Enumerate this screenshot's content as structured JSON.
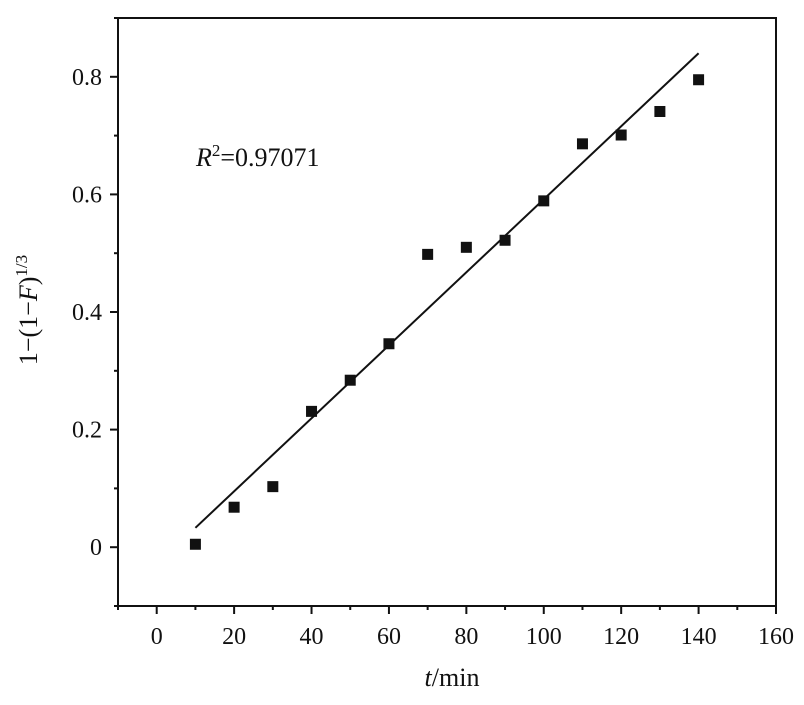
{
  "chart_data": {
    "type": "scatter",
    "xlabel": {
      "var": "t",
      "rest": "/min"
    },
    "ylabel": {
      "text": "1−(1−",
      "var": "F",
      "close": ")",
      "sup": "1/3"
    },
    "annotation": {
      "var": "R",
      "sup": "2",
      "rest": "=0.97071"
    },
    "xlim": [
      -10,
      160
    ],
    "ylim": [
      -0.1,
      0.9
    ],
    "x_ticks": [
      0,
      20,
      40,
      60,
      80,
      100,
      120,
      140,
      160
    ],
    "x_tick_labels": [
      "0",
      "20",
      "40",
      "60",
      "80",
      "100",
      "120",
      "140",
      "160"
    ],
    "y_ticks": [
      0,
      0.2,
      0.4,
      0.6,
      0.8
    ],
    "y_tick_labels": [
      "0",
      "0.2",
      "0.4",
      "0.6",
      "0.8"
    ],
    "grid": false,
    "series": [
      {
        "marker": "square",
        "color": "#111111",
        "x": [
          10,
          20,
          30,
          40,
          50,
          60,
          70,
          80,
          90,
          100,
          110,
          120,
          130,
          140
        ],
        "y": [
          0.005,
          0.068,
          0.103,
          0.231,
          0.284,
          0.346,
          0.498,
          0.51,
          0.522,
          0.589,
          0.686,
          0.701,
          0.741,
          0.795
        ]
      }
    ],
    "fit_line": {
      "x": [
        10,
        140
      ],
      "y": [
        0.033,
        0.84
      ],
      "color": "#111111"
    }
  }
}
